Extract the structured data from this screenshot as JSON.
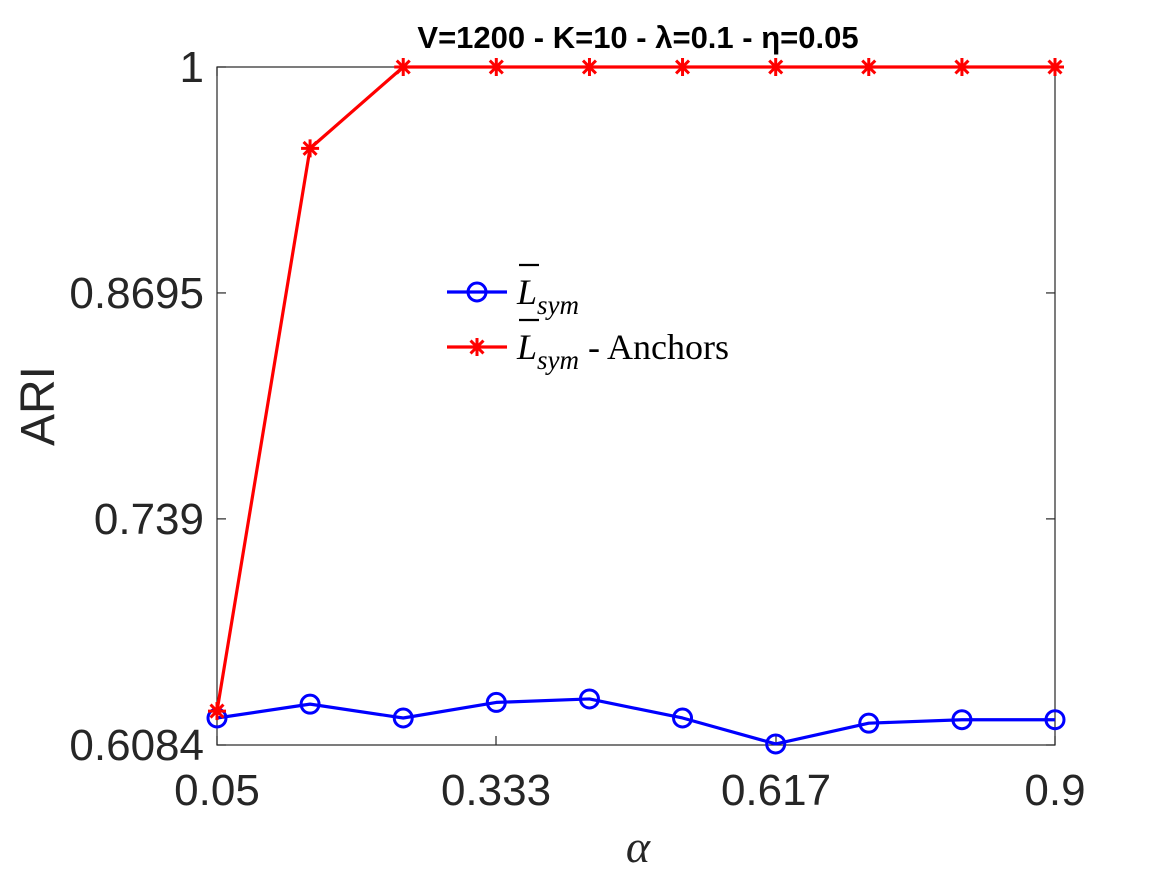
{
  "chart_data": {
    "type": "line",
    "title": "V=1200 - K=10 - λ=0.1 - η=0.05",
    "xlabel": "α",
    "ylabel": "ARI",
    "xlim": [
      0.05,
      0.9
    ],
    "ylim": [
      0.6084,
      1
    ],
    "xticks": [
      0.05,
      0.333,
      0.617,
      0.9
    ],
    "xtick_labels": [
      "0.05",
      "0.333",
      "0.617",
      "0.9"
    ],
    "yticks": [
      0.6084,
      0.739,
      0.8695,
      1
    ],
    "ytick_labels": [
      "0.6084",
      "0.739",
      "0.8695",
      "1"
    ],
    "x": [
      0.05,
      0.1444,
      0.2389,
      0.3333,
      0.4278,
      0.5222,
      0.6167,
      0.7111,
      0.8056,
      0.9
    ],
    "series": [
      {
        "name": "L̄sym",
        "color": "#0000ff",
        "marker": "circle",
        "values": [
          0.624,
          0.632,
          0.624,
          0.633,
          0.635,
          0.624,
          0.609,
          0.621,
          0.623,
          0.623
        ]
      },
      {
        "name": "L̄sym - Anchors",
        "color": "#ff0000",
        "marker": "asterisk",
        "values": [
          0.628,
          0.953,
          1.0,
          1.0,
          1.0,
          1.0,
          1.0,
          1.0,
          1.0,
          1.0
        ]
      }
    ],
    "legend": {
      "position": "center",
      "entries": [
        {
          "main": "L",
          "sub": "sym",
          "suffix": ""
        },
        {
          "main": "L",
          "sub": "sym",
          "suffix": " - Anchors"
        }
      ]
    },
    "grid": false
  }
}
